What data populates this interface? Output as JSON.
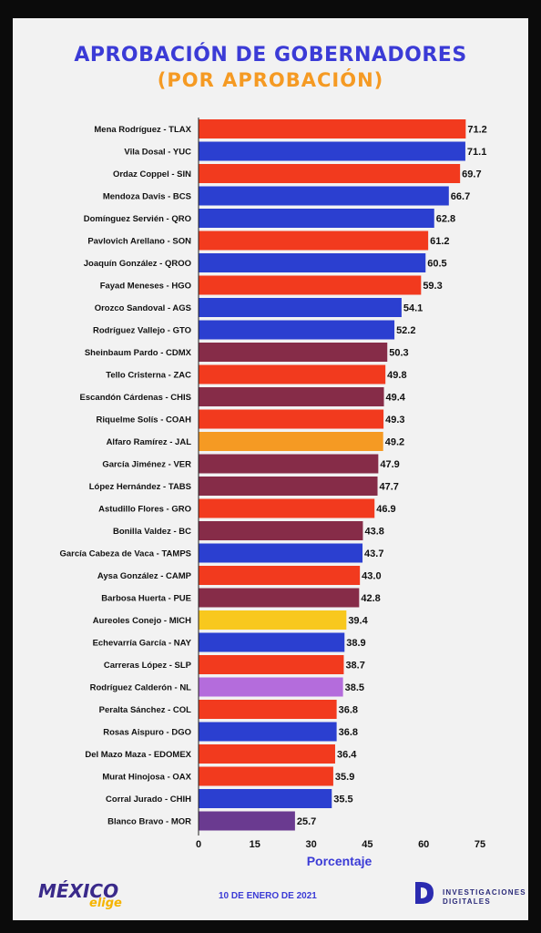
{
  "header": {
    "title": "APROBACIÓN DE GOBERNADORES",
    "subtitle": "(POR APROBACIÓN)"
  },
  "chart_data": {
    "type": "bar",
    "orientation": "horizontal",
    "title": "APROBACIÓN DE GOBERNADORES",
    "subtitle": "(POR APROBACIÓN)",
    "xlabel": "Porcentaje",
    "ylabel": "",
    "xlim": [
      0,
      75
    ],
    "xticks": [
      0,
      15,
      30,
      45,
      60,
      75
    ],
    "grid": false,
    "categories": [
      "Mena Rodríguez - TLAX",
      "Vila Dosal - YUC",
      "Ordaz Coppel - SIN",
      "Mendoza Davis - BCS",
      "Domínguez Servién - QRO",
      "Pavlovich Arellano - SON",
      "Joaquín González - QROO",
      "Fayad Meneses - HGO",
      "Orozco Sandoval - AGS",
      "Rodríguez Vallejo - GTO",
      "Sheinbaum Pardo - CDMX",
      "Tello Cristerna - ZAC",
      "Escandón Cárdenas - CHIS",
      "Riquelme Solís - COAH",
      "Alfaro Ramírez - JAL",
      "García Jiménez - VER",
      "López Hernández - TABS",
      "Astudillo Flores - GRO",
      "Bonilla Valdez - BC",
      "García Cabeza de Vaca - TAMPS",
      "Aysa González - CAMP",
      "Barbosa Huerta - PUE",
      "Aureoles Conejo - MICH",
      "Echevarría García - NAY",
      "Carreras López - SLP",
      "Rodríguez Calderón - NL",
      "Peralta Sánchez - COL",
      "Rosas Aispuro - DGO",
      "Del Mazo Maza - EDOMEX",
      "Murat Hinojosa - OAX",
      "Corral Jurado - CHIH",
      "Blanco Bravo - MOR"
    ],
    "values": [
      71.2,
      71.1,
      69.7,
      66.7,
      62.8,
      61.2,
      60.5,
      59.3,
      54.1,
      52.2,
      50.3,
      49.8,
      49.4,
      49.3,
      49.2,
      47.9,
      47.7,
      46.9,
      43.8,
      43.7,
      43.0,
      42.8,
      39.4,
      38.9,
      38.7,
      38.5,
      36.8,
      36.8,
      36.4,
      35.9,
      35.5,
      25.7
    ],
    "value_labels": [
      "71.2",
      "71.1",
      "69.7",
      "66.7",
      "62.8",
      "61.2",
      "60.5",
      "59.3",
      "54.1",
      "52.2",
      "50.3",
      "49.8",
      "49.4",
      "49.3",
      "49.2",
      "47.9",
      "47.7",
      "46.9",
      "43.8",
      "43.7",
      "43.0",
      "42.8",
      "39.4",
      "38.9",
      "38.7",
      "38.5",
      "36.8",
      "36.8",
      "36.4",
      "35.9",
      "35.5",
      "25.7"
    ],
    "bar_colors": [
      "#f23a1e",
      "#2b3fd0",
      "#f23a1e",
      "#2b3fd0",
      "#2b3fd0",
      "#f23a1e",
      "#2b3fd0",
      "#f23a1e",
      "#2b3fd0",
      "#2b3fd0",
      "#862c48",
      "#f23a1e",
      "#862c48",
      "#f23a1e",
      "#f59a23",
      "#862c48",
      "#862c48",
      "#f23a1e",
      "#862c48",
      "#2b3fd0",
      "#f23a1e",
      "#862c48",
      "#f8c81e",
      "#2b3fd0",
      "#f23a1e",
      "#b46cdc",
      "#f23a1e",
      "#2b3fd0",
      "#f23a1e",
      "#f23a1e",
      "#2b3fd0",
      "#6a3a90"
    ]
  },
  "footer": {
    "date": "10 DE ENERO DE 2021",
    "logo_left_main": "MÉXICO",
    "logo_left_sub": "elige",
    "logo_right_line1": "INVESTIGACIONES",
    "logo_right_line2": "DIGITALES"
  },
  "colors": {
    "title": "#3b3bd6",
    "subtitle": "#f59a23",
    "xlabel": "#3b3bd6"
  }
}
